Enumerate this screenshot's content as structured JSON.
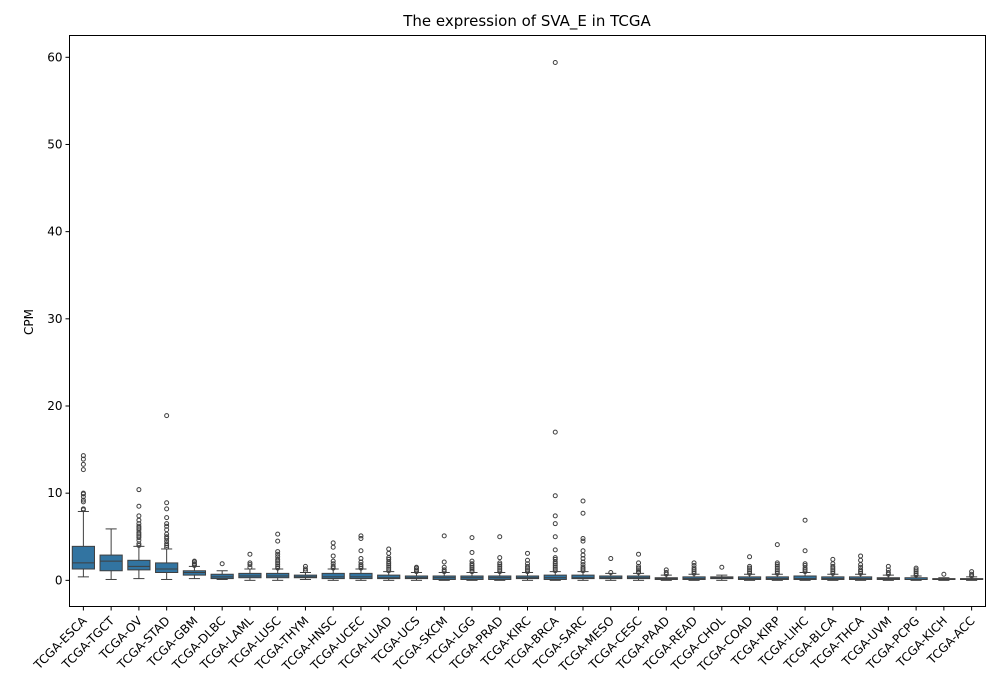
{
  "chart_data": {
    "type": "box",
    "title": "The expression of SVA_E in TCGA",
    "xlabel": "",
    "ylabel": "CPM",
    "ylim": [
      -3,
      62.5
    ],
    "yticks": [
      0,
      10,
      20,
      30,
      40,
      50,
      60
    ],
    "grid": false,
    "legend": "none",
    "box_color": "#3274a1",
    "categories": [
      "TCGA-ESCA",
      "TCGA-TGCT",
      "TCGA-OV",
      "TCGA-STAD",
      "TCGA-GBM",
      "TCGA-DLBC",
      "TCGA-LAML",
      "TCGA-LUSC",
      "TCGA-THYM",
      "TCGA-HNSC",
      "TCGA-UCEC",
      "TCGA-LUAD",
      "TCGA-UCS",
      "TCGA-SKCM",
      "TCGA-LGG",
      "TCGA-PRAD",
      "TCGA-KIRC",
      "TCGA-BRCA",
      "TCGA-SARC",
      "TCGA-MESO",
      "TCGA-CESC",
      "TCGA-PAAD",
      "TCGA-READ",
      "TCGA-CHOL",
      "TCGA-COAD",
      "TCGA-KIRP",
      "TCGA-LIHC",
      "TCGA-BLCA",
      "TCGA-THCA",
      "TCGA-UVM",
      "TCGA-PCPG",
      "TCGA-KICH",
      "TCGA-ACC"
    ],
    "boxes": [
      {
        "whislo": 0.4,
        "q1": 1.3,
        "med": 2.0,
        "q3": 3.9,
        "whishi": 7.9,
        "fliers": [
          8.1,
          8.2,
          9.0,
          9.2,
          9.6,
          9.9,
          10.0,
          12.7,
          13.3,
          13.9,
          14.3
        ]
      },
      {
        "whislo": 0.1,
        "q1": 1.1,
        "med": 2.2,
        "q3": 2.9,
        "whishi": 5.9,
        "fliers": []
      },
      {
        "whislo": 0.2,
        "q1": 1.2,
        "med": 1.6,
        "q3": 2.3,
        "whishi": 3.9,
        "fliers": [
          4.0,
          4.2,
          4.6,
          4.9,
          5.1,
          5.3,
          5.5,
          5.8,
          6.0,
          6.2,
          6.5,
          6.9,
          7.4,
          8.5,
          10.4
        ]
      },
      {
        "whislo": 0.1,
        "q1": 0.9,
        "med": 1.3,
        "q3": 2.0,
        "whishi": 3.6,
        "fliers": [
          3.8,
          4.0,
          4.2,
          4.5,
          4.8,
          5.0,
          5.3,
          5.8,
          6.2,
          6.5,
          7.2,
          8.2,
          8.9,
          18.9
        ]
      },
      {
        "whislo": 0.2,
        "q1": 0.6,
        "med": 0.9,
        "q3": 1.1,
        "whishi": 1.6,
        "fliers": [
          1.7,
          1.8,
          1.9,
          2.1,
          2.2
        ]
      },
      {
        "whislo": 0.1,
        "q1": 0.2,
        "med": 0.4,
        "q3": 0.7,
        "whishi": 1.1,
        "fliers": [
          1.9
        ]
      },
      {
        "whislo": 0.0,
        "q1": 0.3,
        "med": 0.5,
        "q3": 0.8,
        "whishi": 1.3,
        "fliers": [
          1.5,
          1.8,
          2.0,
          3.0
        ]
      },
      {
        "whislo": 0.0,
        "q1": 0.3,
        "med": 0.5,
        "q3": 0.8,
        "whishi": 1.3,
        "fliers": [
          1.4,
          1.6,
          1.8,
          2.0,
          2.2,
          2.4,
          2.7,
          3.0,
          3.3,
          4.5,
          5.3
        ]
      },
      {
        "whislo": 0.1,
        "q1": 0.3,
        "med": 0.4,
        "q3": 0.6,
        "whishi": 0.9,
        "fliers": [
          1.1,
          1.3,
          1.6
        ]
      },
      {
        "whislo": 0.0,
        "q1": 0.2,
        "med": 0.4,
        "q3": 0.8,
        "whishi": 1.3,
        "fliers": [
          1.4,
          1.6,
          1.9,
          2.2,
          2.8,
          3.8,
          4.3
        ]
      },
      {
        "whislo": 0.0,
        "q1": 0.2,
        "med": 0.4,
        "q3": 0.8,
        "whishi": 1.3,
        "fliers": [
          1.4,
          1.6,
          1.8,
          2.1,
          2.5,
          3.4,
          4.8,
          5.1
        ]
      },
      {
        "whislo": 0.0,
        "q1": 0.2,
        "med": 0.3,
        "q3": 0.6,
        "whishi": 1.0,
        "fliers": [
          1.1,
          1.3,
          1.5,
          1.7,
          1.9,
          2.1,
          2.4,
          2.6,
          3.1,
          3.6
        ]
      },
      {
        "whislo": 0.0,
        "q1": 0.2,
        "med": 0.3,
        "q3": 0.5,
        "whishi": 0.9,
        "fliers": [
          1.0,
          1.2,
          1.4,
          1.5
        ]
      },
      {
        "whislo": 0.0,
        "q1": 0.1,
        "med": 0.3,
        "q3": 0.5,
        "whishi": 0.9,
        "fliers": [
          1.0,
          1.2,
          1.5,
          2.1,
          5.1
        ]
      },
      {
        "whislo": 0.0,
        "q1": 0.1,
        "med": 0.3,
        "q3": 0.5,
        "whishi": 0.9,
        "fliers": [
          1.0,
          1.1,
          1.3,
          1.5,
          1.7,
          1.9,
          2.2,
          3.2,
          4.9
        ]
      },
      {
        "whislo": 0.0,
        "q1": 0.1,
        "med": 0.3,
        "q3": 0.5,
        "whishi": 0.9,
        "fliers": [
          1.0,
          1.2,
          1.4,
          1.6,
          1.8,
          2.0,
          2.6,
          5.0
        ]
      },
      {
        "whislo": 0.0,
        "q1": 0.2,
        "med": 0.3,
        "q3": 0.5,
        "whishi": 0.9,
        "fliers": [
          1.0,
          1.2,
          1.4,
          1.6,
          1.9,
          2.3,
          3.1
        ]
      },
      {
        "whislo": 0.0,
        "q1": 0.1,
        "med": 0.3,
        "q3": 0.6,
        "whishi": 1.0,
        "fliers": [
          1.1,
          1.3,
          1.5,
          1.7,
          1.9,
          2.1,
          2.4,
          2.6,
          3.5,
          5.0,
          6.5,
          7.4,
          9.7,
          17.0,
          59.4
        ]
      },
      {
        "whislo": 0.0,
        "q1": 0.2,
        "med": 0.3,
        "q3": 0.6,
        "whishi": 1.0,
        "fliers": [
          1.1,
          1.3,
          1.5,
          1.8,
          2.1,
          2.5,
          2.9,
          3.4,
          4.5,
          4.8,
          7.7,
          9.1
        ]
      },
      {
        "whislo": 0.0,
        "q1": 0.2,
        "med": 0.3,
        "q3": 0.5,
        "whishi": 0.8,
        "fliers": [
          0.9,
          2.5
        ]
      },
      {
        "whislo": 0.0,
        "q1": 0.2,
        "med": 0.3,
        "q3": 0.5,
        "whishi": 0.8,
        "fliers": [
          0.9,
          1.0,
          1.2,
          1.4,
          1.6,
          2.0,
          3.0
        ]
      },
      {
        "whislo": 0.0,
        "q1": 0.1,
        "med": 0.2,
        "q3": 0.3,
        "whishi": 0.6,
        "fliers": [
          0.7,
          0.9,
          1.2
        ]
      },
      {
        "whislo": 0.0,
        "q1": 0.1,
        "med": 0.2,
        "q3": 0.4,
        "whishi": 0.7,
        "fliers": [
          0.8,
          1.0,
          1.2,
          1.4,
          1.7,
          2.0
        ]
      },
      {
        "whislo": 0.0,
        "q1": 0.2,
        "med": 0.3,
        "q3": 0.4,
        "whishi": 0.6,
        "fliers": [
          1.5
        ]
      },
      {
        "whislo": 0.0,
        "q1": 0.1,
        "med": 0.2,
        "q3": 0.4,
        "whishi": 0.7,
        "fliers": [
          0.8,
          1.0,
          1.2,
          1.4,
          1.6,
          2.7
        ]
      },
      {
        "whislo": 0.0,
        "q1": 0.1,
        "med": 0.2,
        "q3": 0.4,
        "whishi": 0.7,
        "fliers": [
          0.8,
          1.0,
          1.2,
          1.4,
          1.6,
          1.8,
          2.0,
          4.1
        ]
      },
      {
        "whislo": 0.0,
        "q1": 0.1,
        "med": 0.2,
        "q3": 0.5,
        "whishi": 0.9,
        "fliers": [
          1.0,
          1.2,
          1.4,
          1.7,
          1.9,
          3.4,
          6.9
        ]
      },
      {
        "whislo": 0.0,
        "q1": 0.1,
        "med": 0.2,
        "q3": 0.4,
        "whishi": 0.7,
        "fliers": [
          0.8,
          1.0,
          1.2,
          1.4,
          1.6,
          1.9,
          2.4
        ]
      },
      {
        "whislo": 0.0,
        "q1": 0.1,
        "med": 0.2,
        "q3": 0.4,
        "whishi": 0.7,
        "fliers": [
          0.8,
          1.0,
          1.2,
          1.5,
          1.8,
          2.3,
          2.8
        ]
      },
      {
        "whislo": 0.0,
        "q1": 0.1,
        "med": 0.2,
        "q3": 0.3,
        "whishi": 0.6,
        "fliers": [
          0.7,
          0.9,
          1.2,
          1.6
        ]
      },
      {
        "whislo": 0.0,
        "q1": 0.1,
        "med": 0.1,
        "q3": 0.3,
        "whishi": 0.5,
        "fliers": [
          0.6,
          0.8,
          1.0,
          1.2,
          1.4
        ]
      },
      {
        "whislo": 0.0,
        "q1": 0.1,
        "med": 0.1,
        "q3": 0.2,
        "whishi": 0.3,
        "fliers": [
          0.7
        ]
      },
      {
        "whislo": 0.0,
        "q1": 0.1,
        "med": 0.1,
        "q3": 0.2,
        "whishi": 0.4,
        "fliers": [
          0.5,
          0.7,
          1.0
        ]
      }
    ]
  }
}
